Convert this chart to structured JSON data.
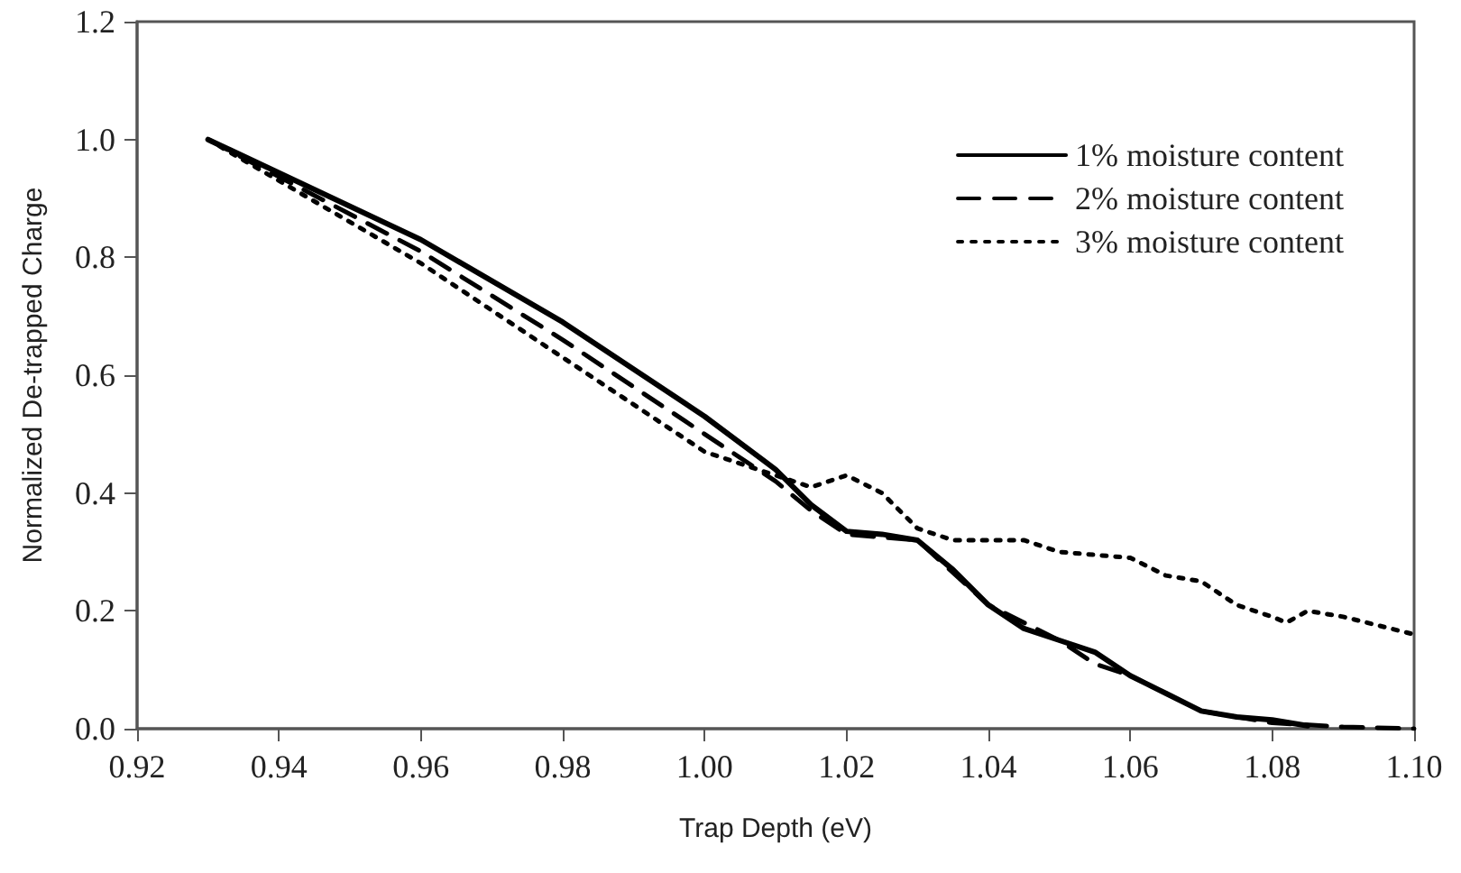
{
  "chart_data": {
    "type": "line",
    "xlabel": "Trap Depth (eV)",
    "ylabel": "Normalized De-trapped Charge",
    "xlim": [
      0.92,
      1.1
    ],
    "xticks": [
      0.92,
      0.94,
      0.96,
      0.98,
      {
        "value": 1.0,
        "label": "1.00"
      },
      1.02,
      1.04,
      1.06,
      1.08,
      {
        "value": 1.1,
        "label": "1.10"
      }
    ],
    "ylim": [
      0,
      1.2
    ],
    "yticks": [
      {
        "value": 0,
        "label": "0.0"
      },
      0.2,
      0.4,
      0.6,
      0.8,
      {
        "value": 1,
        "label": "1.0"
      },
      1.2
    ],
    "grid": false,
    "legend": "top right",
    "marker": "none",
    "series": [
      {
        "name": "1% moisture content",
        "color": "#000000",
        "line_style": "solid",
        "x": [
          0.93,
          0.96,
          0.98,
          1.0,
          1.01,
          1.015,
          1.02,
          1.025,
          1.03,
          1.035,
          1.04,
          1.045,
          1.05,
          1.055,
          1.06,
          1.065,
          1.07,
          1.075,
          1.08,
          1.085
        ],
        "values": [
          1.0,
          0.83,
          0.69,
          0.53,
          0.44,
          0.38,
          0.335,
          0.33,
          0.32,
          0.27,
          0.21,
          0.17,
          0.15,
          0.13,
          0.09,
          0.06,
          0.03,
          0.02,
          0.015,
          0.005
        ]
      },
      {
        "name": "2% moisture content",
        "color": "#000000",
        "line_style": "dashed",
        "x": [
          0.93,
          0.96,
          0.98,
          1.0,
          1.01,
          1.015,
          1.02,
          1.03,
          1.04,
          1.05,
          1.055,
          1.06,
          1.07,
          1.08,
          1.09,
          1.1
        ],
        "values": [
          1.0,
          0.81,
          0.66,
          0.5,
          0.42,
          0.37,
          0.33,
          0.32,
          0.21,
          0.15,
          0.11,
          0.09,
          0.03,
          0.01,
          0.003,
          0.0
        ]
      },
      {
        "name": "3% moisture content",
        "color": "#000000",
        "line_style": "dotted",
        "x": [
          0.93,
          0.96,
          0.98,
          1.0,
          1.01,
          1.015,
          1.02,
          1.025,
          1.03,
          1.035,
          1.045,
          1.05,
          1.06,
          1.065,
          1.07,
          1.075,
          1.08,
          1.082,
          1.085,
          1.09,
          1.1
        ],
        "values": [
          1.0,
          0.79,
          0.63,
          0.47,
          0.43,
          0.41,
          0.43,
          0.4,
          0.34,
          0.32,
          0.32,
          0.3,
          0.29,
          0.26,
          0.25,
          0.21,
          0.19,
          0.18,
          0.2,
          0.19,
          0.16
        ]
      }
    ]
  }
}
